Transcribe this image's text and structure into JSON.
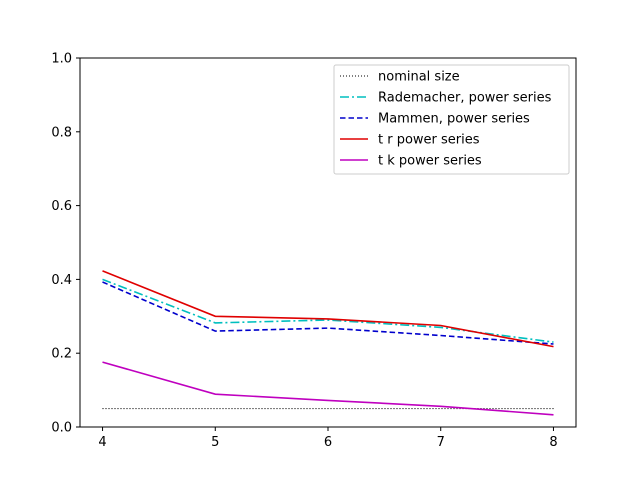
{
  "chart_data": {
    "type": "line",
    "title": "",
    "xlabel": "",
    "ylabel": "",
    "x": [
      4,
      5,
      6,
      7,
      8
    ],
    "xlim": [
      3.8,
      8.2
    ],
    "ylim": [
      0.0,
      1.0
    ],
    "x_ticks": [
      "4",
      "5",
      "6",
      "7",
      "8"
    ],
    "y_ticks": [
      "0.0",
      "0.2",
      "0.4",
      "0.6",
      "0.8",
      "1.0"
    ],
    "grid": false,
    "legend_position": "top-right",
    "series": [
      {
        "name": "nominal size",
        "values": [
          0.05,
          0.05,
          0.05,
          0.05,
          0.05
        ],
        "color": "#000000",
        "style": "dotted"
      },
      {
        "name": "Rademacher, power series",
        "values": [
          0.4,
          0.282,
          0.29,
          0.27,
          0.23
        ],
        "color": "#00bfbf",
        "style": "dashdot"
      },
      {
        "name": "Mammen, power series",
        "values": [
          0.393,
          0.26,
          0.268,
          0.248,
          0.225
        ],
        "color": "#0000cc",
        "style": "dashed"
      },
      {
        "name": "t r power series",
        "values": [
          0.423,
          0.3,
          0.293,
          0.275,
          0.218
        ],
        "color": "#e00000",
        "style": "solid"
      },
      {
        "name": "t k power series",
        "values": [
          0.176,
          0.089,
          0.072,
          0.056,
          0.033
        ],
        "color": "#bf00bf",
        "style": "solid"
      }
    ]
  }
}
